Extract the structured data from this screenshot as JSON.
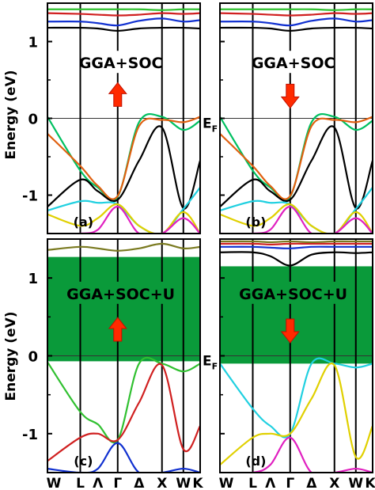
{
  "figure": {
    "ylabel": "Energy (eV)",
    "fermi_label_main": "E",
    "fermi_label_sub": "F",
    "kpath": [
      "W",
      "L",
      "Λ",
      "Γ",
      "Δ",
      "X",
      "W",
      "K"
    ]
  },
  "chart_data": [
    {
      "type": "line",
      "id": "a",
      "panel_label": "(a)",
      "method": "GGA+SOC",
      "spin": "up",
      "ylim": [
        -1.5,
        1.5
      ],
      "yticks": [
        -1,
        0,
        1
      ],
      "gap_shading": false,
      "series": [
        {
          "color": "#000000",
          "x": [
            0,
            1,
            2,
            3,
            4,
            5,
            6,
            7
          ],
          "values": [
            1.18,
            1.18,
            1.17,
            1.14,
            1.17,
            1.18,
            1.18,
            1.17
          ]
        },
        {
          "color": "#1030d0",
          "x": [
            0,
            1,
            2,
            3,
            4,
            5,
            6,
            7
          ],
          "values": [
            1.26,
            1.26,
            1.24,
            1.21,
            1.27,
            1.3,
            1.26,
            1.28
          ]
        },
        {
          "color": "#d02020",
          "x": [
            0,
            1,
            2,
            3,
            4,
            5,
            6,
            7
          ],
          "values": [
            1.37,
            1.36,
            1.35,
            1.34,
            1.35,
            1.37,
            1.36,
            1.37
          ]
        },
        {
          "color": "#30c030",
          "x": [
            0,
            1,
            2,
            3,
            4,
            5,
            6,
            7
          ],
          "values": [
            1.42,
            1.42,
            1.42,
            1.42,
            1.42,
            1.41,
            1.42,
            1.42
          ]
        },
        {
          "color": "#00c060",
          "x": [
            0,
            1,
            2,
            3,
            4,
            5,
            6,
            7
          ],
          "values": [
            0.02,
            -0.68,
            -0.9,
            -1.02,
            -0.05,
            0.02,
            -0.15,
            -0.03
          ]
        },
        {
          "color": "#e06010",
          "x": [
            0,
            1,
            2,
            3,
            4,
            5,
            6,
            7
          ],
          "values": [
            -0.2,
            -0.62,
            -0.88,
            -1.01,
            -0.1,
            -0.02,
            -0.05,
            0.02
          ]
        },
        {
          "color": "#000000",
          "x": [
            0,
            1,
            2,
            3,
            4,
            5,
            6,
            7
          ],
          "values": [
            -1.15,
            -0.8,
            -0.95,
            -1.06,
            -0.55,
            -0.12,
            -1.17,
            -0.55
          ]
        },
        {
          "color": "#20d0e0",
          "x": [
            0,
            1,
            2,
            3,
            4,
            5,
            6,
            7
          ],
          "values": [
            -1.2,
            -1.08,
            -1.1,
            -1.12,
            -1.4,
            -1.5,
            -1.18,
            -0.9
          ]
        },
        {
          "color": "#e0d000",
          "x": [
            0,
            1,
            2,
            3,
            4,
            5,
            6,
            7
          ],
          "values": [
            -1.25,
            -1.4,
            -1.3,
            -1.12,
            -1.4,
            -1.5,
            -1.22,
            -1.5
          ]
        },
        {
          "color": "#e020c0",
          "x": [
            0,
            1,
            2,
            3,
            4,
            5,
            6,
            7
          ],
          "values": [
            -1.5,
            -1.5,
            -1.45,
            -1.15,
            -1.5,
            -1.5,
            -1.3,
            -1.5
          ]
        }
      ]
    },
    {
      "type": "line",
      "id": "b",
      "panel_label": "(b)",
      "method": "GGA+SOC",
      "spin": "down",
      "ylim": [
        -1.5,
        1.5
      ],
      "yticks": [
        -1,
        0,
        1
      ],
      "gap_shading": false,
      "series": [
        {
          "color": "#000000",
          "x": [
            0,
            1,
            2,
            3,
            4,
            5,
            6,
            7
          ],
          "values": [
            1.18,
            1.18,
            1.17,
            1.14,
            1.17,
            1.18,
            1.18,
            1.17
          ]
        },
        {
          "color": "#1030d0",
          "x": [
            0,
            1,
            2,
            3,
            4,
            5,
            6,
            7
          ],
          "values": [
            1.26,
            1.26,
            1.24,
            1.21,
            1.27,
            1.3,
            1.26,
            1.28
          ]
        },
        {
          "color": "#d02020",
          "x": [
            0,
            1,
            2,
            3,
            4,
            5,
            6,
            7
          ],
          "values": [
            1.37,
            1.36,
            1.35,
            1.34,
            1.35,
            1.37,
            1.36,
            1.37
          ]
        },
        {
          "color": "#30c030",
          "x": [
            0,
            1,
            2,
            3,
            4,
            5,
            6,
            7
          ],
          "values": [
            1.42,
            1.42,
            1.42,
            1.42,
            1.42,
            1.41,
            1.42,
            1.42
          ]
        },
        {
          "color": "#00c060",
          "x": [
            0,
            1,
            2,
            3,
            4,
            5,
            6,
            7
          ],
          "values": [
            0.02,
            -0.68,
            -0.9,
            -1.02,
            -0.05,
            0.02,
            -0.15,
            -0.03
          ]
        },
        {
          "color": "#e06010",
          "x": [
            0,
            1,
            2,
            3,
            4,
            5,
            6,
            7
          ],
          "values": [
            -0.2,
            -0.62,
            -0.88,
            -1.01,
            -0.1,
            -0.02,
            -0.05,
            0.02
          ]
        },
        {
          "color": "#000000",
          "x": [
            0,
            1,
            2,
            3,
            4,
            5,
            6,
            7
          ],
          "values": [
            -1.15,
            -0.8,
            -0.95,
            -1.06,
            -0.55,
            -0.12,
            -1.17,
            -0.55
          ]
        },
        {
          "color": "#20d0e0",
          "x": [
            0,
            1,
            2,
            3,
            4,
            5,
            6,
            7
          ],
          "values": [
            -1.2,
            -1.08,
            -1.1,
            -1.12,
            -1.4,
            -1.5,
            -1.18,
            -0.9
          ]
        },
        {
          "color": "#e0d000",
          "x": [
            0,
            1,
            2,
            3,
            4,
            5,
            6,
            7
          ],
          "values": [
            -1.25,
            -1.4,
            -1.3,
            -1.12,
            -1.4,
            -1.5,
            -1.22,
            -1.5
          ]
        },
        {
          "color": "#e020c0",
          "x": [
            0,
            1,
            2,
            3,
            4,
            5,
            6,
            7
          ],
          "values": [
            -1.5,
            -1.5,
            -1.45,
            -1.15,
            -1.5,
            -1.5,
            -1.3,
            -1.5
          ]
        }
      ]
    },
    {
      "type": "line",
      "id": "c",
      "panel_label": "(c)",
      "method": "GGA+SOC+U",
      "spin": "up",
      "ylim": [
        -1.5,
        1.5
      ],
      "yticks": [
        -1,
        0,
        1
      ],
      "gap_shading": true,
      "gap_range": [
        -0.07,
        1.27
      ],
      "gap_color": "#0a9a3a",
      "series": [
        {
          "color": "#7a7a20",
          "x": [
            0,
            1,
            2,
            3,
            4,
            5,
            6,
            7
          ],
          "values": [
            1.36,
            1.4,
            1.38,
            1.35,
            1.38,
            1.44,
            1.38,
            1.4
          ]
        },
        {
          "color": "#30c030",
          "x": [
            0,
            1,
            2,
            3,
            4,
            5,
            6,
            7
          ],
          "values": [
            -0.08,
            -0.72,
            -0.88,
            -1.08,
            -0.1,
            -0.1,
            -0.2,
            -0.1
          ]
        },
        {
          "color": "#d02020",
          "x": [
            0,
            1,
            2,
            3,
            4,
            5,
            6,
            7
          ],
          "values": [
            -1.35,
            -1.05,
            -1.0,
            -1.08,
            -0.6,
            -0.12,
            -1.2,
            -0.9
          ]
        },
        {
          "color": "#1030d0",
          "x": [
            0,
            1,
            2,
            3,
            4,
            5,
            6,
            7
          ],
          "values": [
            -1.45,
            -1.5,
            -1.45,
            -1.12,
            -1.5,
            -1.5,
            -1.45,
            -1.5
          ]
        }
      ]
    },
    {
      "type": "line",
      "id": "d",
      "panel_label": "(d)",
      "method": "GGA+SOC+U",
      "spin": "down",
      "ylim": [
        -1.5,
        1.5
      ],
      "yticks": [
        -1,
        0,
        1
      ],
      "gap_shading": true,
      "gap_range": [
        -0.1,
        1.15
      ],
      "gap_color": "#0a9a3a",
      "series": [
        {
          "color": "#000000",
          "x": [
            0,
            1,
            2,
            3,
            4,
            5,
            6,
            7
          ],
          "values": [
            1.33,
            1.33,
            1.28,
            1.16,
            1.3,
            1.33,
            1.32,
            1.33
          ]
        },
        {
          "color": "#1030d0",
          "x": [
            0,
            1,
            2,
            3,
            4,
            5,
            6,
            7
          ],
          "values": [
            1.4,
            1.4,
            1.39,
            1.38,
            1.4,
            1.4,
            1.4,
            1.4
          ]
        },
        {
          "color": "#d02020",
          "x": [
            0,
            1,
            2,
            3,
            4,
            5,
            6,
            7
          ],
          "values": [
            1.44,
            1.44,
            1.43,
            1.44,
            1.44,
            1.44,
            1.44,
            1.44
          ]
        },
        {
          "color": "#7a7a20",
          "x": [
            0,
            1,
            2,
            3,
            4,
            5,
            6,
            7
          ],
          "values": [
            1.47,
            1.47,
            1.46,
            1.47,
            1.46,
            1.47,
            1.47,
            1.47
          ]
        },
        {
          "color": "#20d0e0",
          "x": [
            0,
            1,
            2,
            3,
            4,
            5,
            6,
            7
          ],
          "values": [
            -0.1,
            -0.68,
            -0.9,
            -1.0,
            -0.1,
            -0.1,
            -0.15,
            -0.1
          ]
        },
        {
          "color": "#e0d000",
          "x": [
            0,
            1,
            2,
            3,
            4,
            5,
            6,
            7
          ],
          "values": [
            -1.4,
            -1.05,
            -1.0,
            -1.0,
            -0.55,
            -0.12,
            -1.3,
            -0.9
          ]
        },
        {
          "color": "#e020c0",
          "x": [
            0,
            1,
            2,
            3,
            4,
            5,
            6,
            7
          ],
          "values": [
            -1.5,
            -1.5,
            -1.4,
            -1.05,
            -1.5,
            -1.5,
            -1.45,
            -1.5
          ]
        }
      ]
    }
  ]
}
